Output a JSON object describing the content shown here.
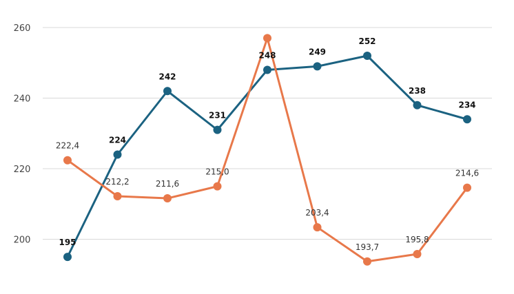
{
  "chart_data": {
    "type": "line",
    "title": "",
    "xlabel": "",
    "ylabel": "",
    "x": [
      1,
      2,
      3,
      4,
      5,
      6,
      7,
      8,
      9
    ],
    "ylim": [
      186,
      264
    ],
    "yticks": [
      200,
      220,
      240,
      260
    ],
    "ytick_labels": [
      "200",
      "220",
      "240",
      "260"
    ],
    "grid": true,
    "series": [
      {
        "color": "#1b6281",
        "values": [
          195,
          224,
          242,
          231,
          248,
          249,
          252,
          238,
          234
        ],
        "labels": [
          "195",
          "224",
          "242",
          "231",
          "248",
          "249",
          "252",
          "238",
          "234"
        ]
      },
      {
        "color": "#e8784a",
        "values": [
          222.4,
          212.2,
          211.6,
          215.0,
          257.0,
          203.4,
          193.7,
          195.8,
          214.6
        ],
        "labels": [
          "222,4",
          "212,2",
          "211,6",
          "215,0",
          "",
          "203,4",
          "193,7",
          "195,8",
          "214,6"
        ]
      }
    ]
  }
}
